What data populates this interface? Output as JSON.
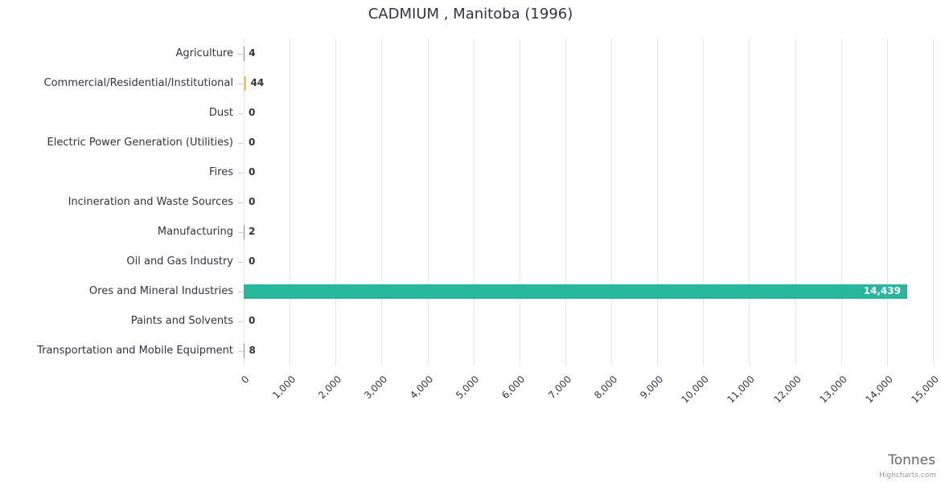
{
  "chart_data": {
    "type": "bar",
    "title": "CADMIUM , Manitoba (1996)",
    "xlabel": "Tonnes",
    "credit": "Highcharts.com",
    "categories": [
      "Agriculture",
      "Commercial/Residential/Institutional",
      "Dust",
      "Electric Power Generation (Utilities)",
      "Fires",
      "Incineration and Waste Sources",
      "Manufacturing",
      "Oil and Gas Industry",
      "Ores and Mineral Industries",
      "Paints and Solvents",
      "Transportation and Mobile Equipment"
    ],
    "values": [
      4,
      44,
      0,
      0,
      0,
      0,
      2,
      0,
      14439,
      0,
      8
    ],
    "value_labels": [
      "4",
      "44",
      "0",
      "0",
      "0",
      "0",
      "2",
      "0",
      "14,439",
      "0",
      "8"
    ],
    "point_colors": [
      "#26b79c",
      "#f5c64a",
      "#26b79c",
      "#26b79c",
      "#26b79c",
      "#26b79c",
      "#26b79c",
      "#26b79c",
      "#26b79c",
      "#26b79c",
      "#26b79c"
    ],
    "xlim": [
      0,
      15000
    ],
    "x_ticks": [
      "0",
      "1,000",
      "2,000",
      "3,000",
      "4,000",
      "5,000",
      "6,000",
      "7,000",
      "8,000",
      "9,000",
      "10,000",
      "11,000",
      "12,000",
      "13,000",
      "14,000",
      "15,000"
    ],
    "grid": true,
    "legend": false
  },
  "colors": {
    "grid": "#e6e6e6",
    "tick": "#c6c6c6",
    "label": "#333340",
    "value_label_outside": "#333333",
    "value_label_inside": "#ffffff"
  }
}
